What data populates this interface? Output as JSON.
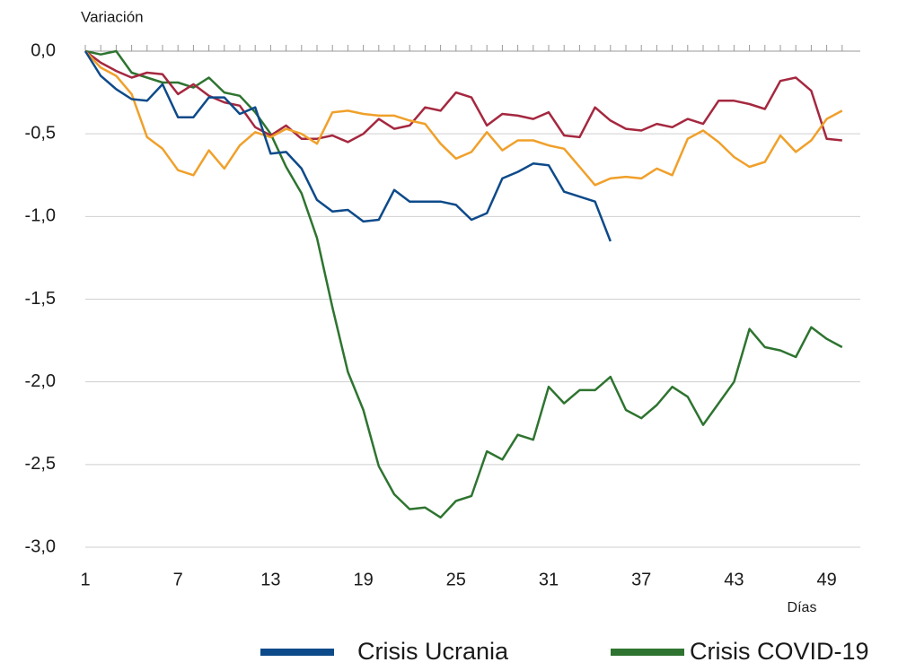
{
  "chart_data": {
    "type": "line",
    "y_label": "Variación",
    "x_label": "Días",
    "x": [
      1,
      2,
      3,
      4,
      5,
      6,
      7,
      8,
      9,
      10,
      11,
      12,
      13,
      14,
      15,
      16,
      17,
      18,
      19,
      20,
      21,
      22,
      23,
      24,
      25,
      26,
      27,
      28,
      29,
      30,
      31,
      32,
      33,
      34,
      35,
      36,
      37,
      38,
      39,
      40,
      41,
      42,
      43,
      44,
      45,
      46,
      47,
      48,
      49,
      50
    ],
    "xlim": [
      1,
      51
    ],
    "xticks": [
      1,
      7,
      13,
      19,
      25,
      31,
      37,
      43,
      49
    ],
    "ylim": [
      -3,
      0
    ],
    "yticks": [
      {
        "value": -3,
        "label": "-3,0"
      },
      {
        "value": -2.5,
        "label": "-2,5"
      },
      {
        "value": -2,
        "label": "-2,0"
      },
      {
        "value": -1.5,
        "label": "-1,5"
      },
      {
        "value": -1,
        "label": "-1,0"
      },
      {
        "value": -0.5,
        "label": "-0,5"
      },
      {
        "value": 0,
        "label": "0,0"
      }
    ],
    "grid": true,
    "series": [
      {
        "name": "Crisis Ucrania",
        "color": "#0d4a8a",
        "values": [
          0,
          -0.15,
          -0.23,
          -0.29,
          -0.3,
          -0.2,
          -0.4,
          -0.4,
          -0.28,
          -0.28,
          -0.38,
          -0.34,
          -0.62,
          -0.61,
          -0.71,
          -0.9,
          -0.97,
          -0.96,
          -1.03,
          -1.02,
          -0.84,
          -0.91,
          -0.91,
          -0.91,
          -0.93,
          -1.02,
          -0.98,
          -0.77,
          -0.73,
          -0.68,
          -0.69,
          -0.85,
          -0.88,
          -0.91,
          -1.15,
          null,
          null,
          null,
          null,
          null,
          null,
          null,
          null,
          null,
          null,
          null,
          null,
          null,
          null,
          null
        ]
      },
      {
        "name": "Crisis COVID-19",
        "color": "#2e7430",
        "values": [
          0,
          -0.02,
          0,
          -0.13,
          -0.16,
          -0.19,
          -0.19,
          -0.22,
          -0.16,
          -0.25,
          -0.27,
          -0.37,
          -0.5,
          -0.7,
          -0.86,
          -1.13,
          -1.55,
          -1.94,
          -2.17,
          -2.51,
          -2.68,
          -2.77,
          -2.76,
          -2.82,
          -2.72,
          -2.69,
          -2.42,
          -2.47,
          -2.32,
          -2.35,
          -2.03,
          -2.13,
          -2.05,
          -2.05,
          -1.97,
          -2.17,
          -2.22,
          -2.14,
          -2.03,
          -2.09,
          -2.26,
          -2.13,
          -2.0,
          -1.68,
          -1.79,
          -1.81,
          -1.85,
          -1.67,
          -1.74,
          -1.79
        ]
      },
      {
        "color": "#a5283f",
        "values": [
          0,
          -0.07,
          -0.12,
          -0.16,
          -0.13,
          -0.14,
          -0.26,
          -0.2,
          -0.27,
          -0.31,
          -0.33,
          -0.46,
          -0.51,
          -0.45,
          -0.53,
          -0.53,
          -0.51,
          -0.55,
          -0.5,
          -0.41,
          -0.47,
          -0.45,
          -0.34,
          -0.36,
          -0.25,
          -0.28,
          -0.45,
          -0.38,
          -0.39,
          -0.41,
          -0.37,
          -0.51,
          -0.52,
          -0.34,
          -0.42,
          -0.47,
          -0.48,
          -0.44,
          -0.46,
          -0.41,
          -0.44,
          -0.3,
          -0.3,
          -0.32,
          -0.35,
          -0.18,
          -0.16,
          -0.24,
          -0.53,
          -0.54
        ]
      },
      {
        "color": "#f0a02a",
        "values": [
          0,
          -0.1,
          -0.15,
          -0.26,
          -0.52,
          -0.59,
          -0.72,
          -0.75,
          -0.6,
          -0.71,
          -0.57,
          -0.49,
          -0.52,
          -0.47,
          -0.5,
          -0.56,
          -0.37,
          -0.36,
          -0.38,
          -0.39,
          -0.39,
          -0.42,
          -0.44,
          -0.56,
          -0.65,
          -0.61,
          -0.49,
          -0.6,
          -0.54,
          -0.54,
          -0.57,
          -0.59,
          -0.7,
          -0.81,
          -0.77,
          -0.76,
          -0.77,
          -0.71,
          -0.75,
          -0.53,
          -0.48,
          -0.55,
          -0.64,
          -0.7,
          -0.67,
          -0.51,
          -0.61,
          -0.54,
          -0.41,
          -0.36
        ]
      }
    ]
  }
}
